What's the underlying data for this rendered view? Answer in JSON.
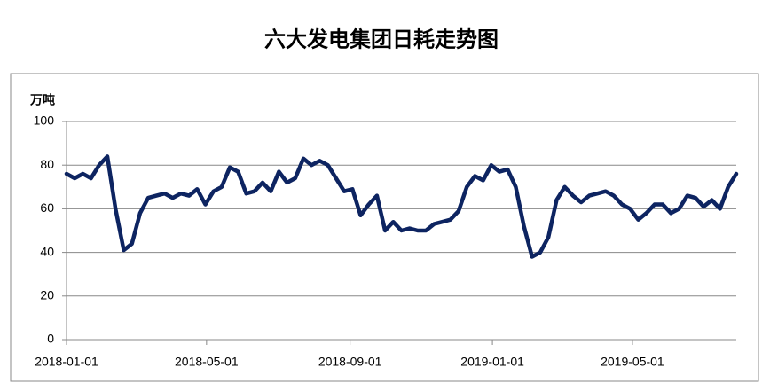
{
  "chart_data": {
    "type": "line",
    "title": "六大发电集团日耗走势图",
    "y_label": "万吨",
    "x": [
      "2018-01-01",
      "2018-01-08",
      "2018-01-15",
      "2018-01-22",
      "2018-01-29",
      "2018-02-05",
      "2018-02-12",
      "2018-02-19",
      "2018-02-26",
      "2018-03-05",
      "2018-03-12",
      "2018-03-19",
      "2018-03-26",
      "2018-04-02",
      "2018-04-09",
      "2018-04-16",
      "2018-04-23",
      "2018-04-30",
      "2018-05-07",
      "2018-05-14",
      "2018-05-21",
      "2018-05-28",
      "2018-06-04",
      "2018-06-11",
      "2018-06-18",
      "2018-06-25",
      "2018-07-02",
      "2018-07-09",
      "2018-07-16",
      "2018-07-23",
      "2018-07-30",
      "2018-08-06",
      "2018-08-13",
      "2018-08-20",
      "2018-08-27",
      "2018-09-03",
      "2018-09-10",
      "2018-09-17",
      "2018-09-24",
      "2018-10-01",
      "2018-10-08",
      "2018-10-15",
      "2018-10-22",
      "2018-10-29",
      "2018-11-05",
      "2018-11-12",
      "2018-11-19",
      "2018-11-26",
      "2018-12-03",
      "2018-12-10",
      "2018-12-17",
      "2018-12-24",
      "2018-12-31",
      "2019-01-07",
      "2019-01-14",
      "2019-01-21",
      "2019-01-28",
      "2019-02-04",
      "2019-02-11",
      "2019-02-18",
      "2019-02-25",
      "2019-03-04",
      "2019-03-11",
      "2019-03-18",
      "2019-03-25",
      "2019-04-01",
      "2019-04-08",
      "2019-04-15",
      "2019-04-22",
      "2019-04-29",
      "2019-05-06",
      "2019-05-13",
      "2019-05-20",
      "2019-05-27",
      "2019-06-03",
      "2019-06-10",
      "2019-06-17",
      "2019-06-24",
      "2019-07-01",
      "2019-07-08",
      "2019-07-15",
      "2019-07-22",
      "2019-07-29"
    ],
    "series": [
      {
        "color": "#0d2461",
        "values": [
          76,
          74,
          76,
          74,
          80,
          84,
          60,
          41,
          44,
          58,
          65,
          66,
          67,
          65,
          67,
          66,
          69,
          62,
          68,
          70,
          79,
          77,
          67,
          68,
          72,
          68,
          77,
          72,
          74,
          83,
          80,
          82,
          80,
          74,
          68,
          69,
          57,
          62,
          66,
          50,
          54,
          50,
          51,
          50,
          50,
          53,
          54,
          55,
          59,
          70,
          75,
          73,
          80,
          77,
          78,
          70,
          52,
          38,
          40,
          47,
          64,
          70,
          66,
          63,
          66,
          67,
          68,
          66,
          62,
          60,
          55,
          58,
          62,
          62,
          58,
          60,
          66,
          65,
          61,
          64,
          60,
          70,
          76
        ]
      }
    ],
    "xlim": [
      "2018-01-01",
      "2019-07-29"
    ],
    "xticks": [
      "2018-01-01",
      "2018-05-01",
      "2018-09-01",
      "2019-01-01",
      "2019-05-01"
    ],
    "ylim": [
      0,
      100
    ],
    "yticks": [
      0,
      20,
      40,
      60,
      80,
      100
    ],
    "grid": true
  }
}
